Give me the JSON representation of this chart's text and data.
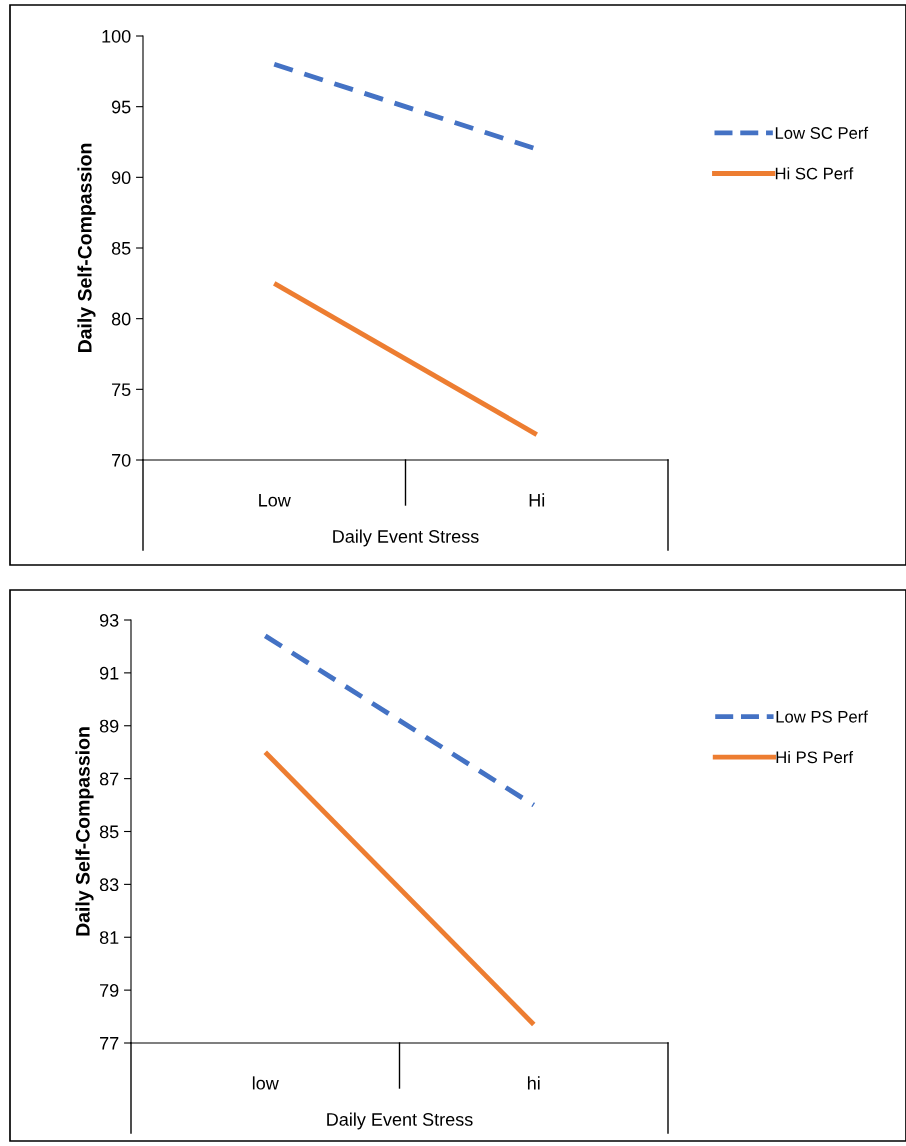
{
  "chart_data": [
    {
      "type": "line",
      "ylabel": "Daily Self-Compassion",
      "xlabel": "Daily Event Stress",
      "categories": [
        "Low",
        "Hi"
      ],
      "ylim": [
        70,
        100
      ],
      "yticks": [
        70,
        75,
        80,
        85,
        90,
        95,
        100
      ],
      "grid": false,
      "legend": "right",
      "marker": "none",
      "series": [
        {
          "name": "Low SC Perf",
          "color": "#4472c4",
          "line_style": "dashed",
          "values": [
            98.0,
            92.0
          ]
        },
        {
          "name": "Hi SC Perf",
          "color": "#ed7d31",
          "line_style": "solid",
          "values": [
            82.5,
            71.8
          ]
        }
      ]
    },
    {
      "type": "line",
      "ylabel": "Daily Self-Compassion",
      "xlabel": "Daily Event Stress",
      "categories": [
        "low",
        "hi"
      ],
      "ylim": [
        77,
        93
      ],
      "yticks": [
        77,
        79,
        81,
        83,
        85,
        87,
        89,
        91,
        93
      ],
      "grid": false,
      "legend": "right",
      "marker": "none",
      "series": [
        {
          "name": "Low PS Perf",
          "color": "#4472c4",
          "line_style": "dashed",
          "values": [
            92.4,
            86.0
          ]
        },
        {
          "name": "Hi PS Perf",
          "color": "#ed7d31",
          "line_style": "solid",
          "values": [
            88.0,
            77.7
          ]
        }
      ]
    }
  ]
}
